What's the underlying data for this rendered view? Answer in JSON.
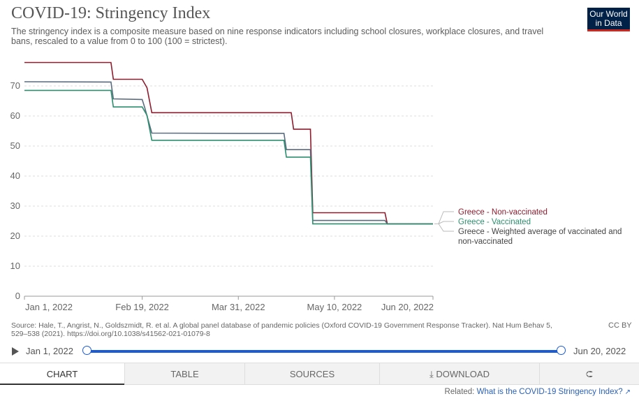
{
  "header": {
    "title": "COVID-19: Stringency Index",
    "subtitle": "The stringency index is a composite measure based on nine response indicators including school closures, workplace closures, and travel bans, rescaled to a value from 0 to 100 (100 = strictest).",
    "logo_line1": "Our World",
    "logo_line2": "in Data"
  },
  "chart_data": {
    "type": "line",
    "x_tick_labels": [
      "Jan 1, 2022",
      "Feb 19, 2022",
      "Mar 31, 2022",
      "May 10, 2022",
      "Jun 20, 2022"
    ],
    "x_ticks_days": [
      0,
      49,
      89,
      129,
      170
    ],
    "xlim_days": [
      0,
      170
    ],
    "ylim": [
      0,
      80
    ],
    "y_ticks": [
      0,
      10,
      20,
      30,
      40,
      50,
      60,
      70
    ],
    "grid": true,
    "legend_placement": "right",
    "series": [
      {
        "name": "Greece - Non-vaccinated",
        "color": "#8c1c2e",
        "points": [
          [
            0,
            77.8
          ],
          [
            36,
            77.8
          ],
          [
            37,
            72.2
          ],
          [
            49,
            72.2
          ],
          [
            51,
            69.4
          ],
          [
            53,
            61.1
          ],
          [
            111,
            61.1
          ],
          [
            112,
            55.6
          ],
          [
            119,
            55.6
          ],
          [
            120,
            27.8
          ],
          [
            150,
            27.8
          ],
          [
            151,
            24.1
          ],
          [
            170,
            24.1
          ]
        ]
      },
      {
        "name": "Greece - Weighted average of vaccinated and non-vaccinated",
        "color": "#5a6b7e",
        "points": [
          [
            0,
            71.4
          ],
          [
            36,
            71.3
          ],
          [
            37,
            65.7
          ],
          [
            49,
            65.5
          ],
          [
            50,
            62.9
          ],
          [
            53,
            54.3
          ],
          [
            90,
            54.2
          ],
          [
            108,
            54.2
          ],
          [
            109,
            48.8
          ],
          [
            119,
            48.8
          ],
          [
            120,
            25.2
          ],
          [
            150,
            25.2
          ],
          [
            151,
            24.1
          ],
          [
            170,
            24.1
          ]
        ]
      },
      {
        "name": "Greece - Vaccinated",
        "color": "#2d8f6f",
        "points": [
          [
            0,
            68.5
          ],
          [
            36,
            68.5
          ],
          [
            37,
            63.0
          ],
          [
            49,
            63.0
          ],
          [
            51,
            60.2
          ],
          [
            53,
            51.9
          ],
          [
            108,
            51.9
          ],
          [
            109,
            46.3
          ],
          [
            119,
            46.3
          ],
          [
            120,
            24.1
          ],
          [
            170,
            24.1
          ]
        ]
      }
    ],
    "legend": [
      {
        "label": "Greece - Non-vaccinated",
        "color": "#8c1c2e"
      },
      {
        "label": "Greece - Vaccinated",
        "color": "#2d8f6f"
      },
      {
        "label": "Greece - Weighted average of vaccinated and non-vaccinated",
        "color": "#5a6b7e"
      }
    ]
  },
  "footer": {
    "source": "Source: Hale, T., Angrist, N., Goldszmidt, R. et al. A global panel database of pandemic policies (Oxford COVID-19 Government Response Tracker). Nat Hum Behav 5, 529–538 (2021). https://doi.org/10.1038/s41562-021-01079-8",
    "license": "CC BY"
  },
  "timeline": {
    "start_label": "Jan 1, 2022",
    "end_label": "Jun 20, 2022"
  },
  "tabs": {
    "chart": "Chart",
    "table": "Table",
    "sources": "Sources",
    "download": "Download"
  },
  "related": {
    "prefix": "Related:",
    "link": "What is the COVID-19 Stringency Index?"
  },
  "colors": {
    "accent_blue": "#1b5bd6",
    "logo_bg": "#002147",
    "logo_bar": "#ce261e"
  }
}
